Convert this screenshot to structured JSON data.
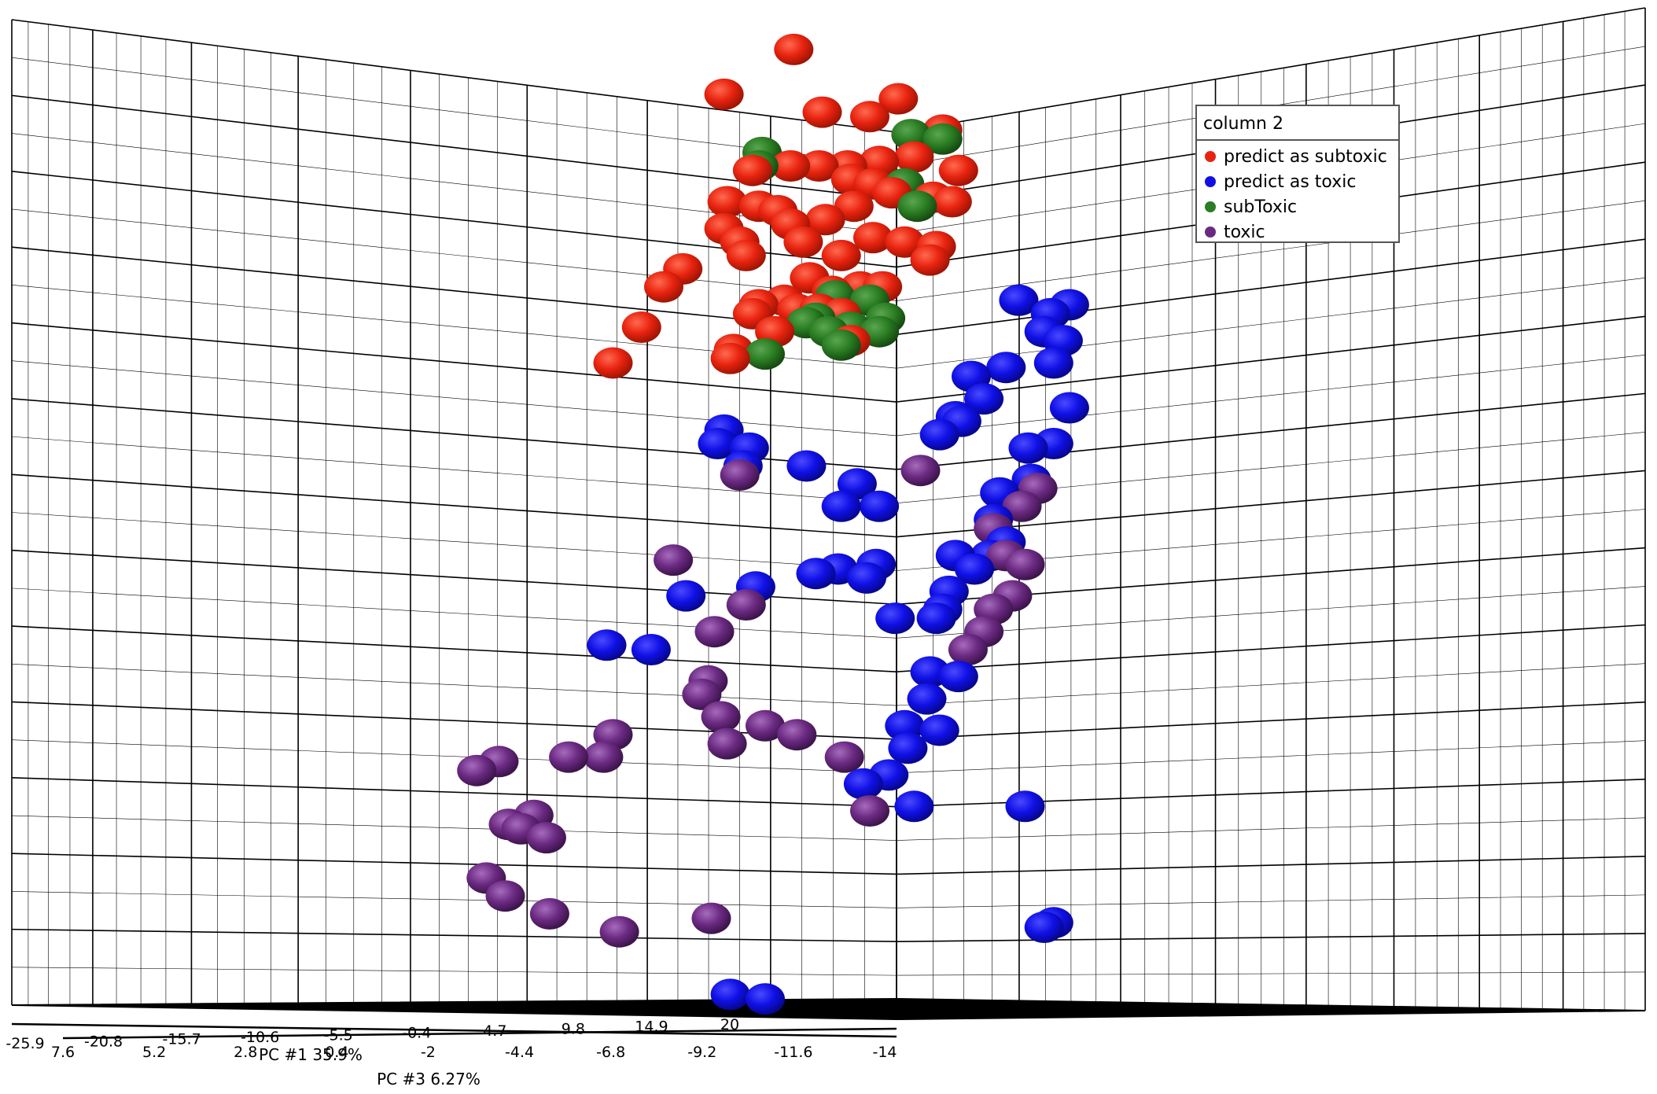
{
  "chart_data": {
    "type": "scatter",
    "variant": "3d-scatter",
    "title": "",
    "axes": {
      "x": {
        "label": "PC #1 35.9%",
        "ticks": [
          "-25.9",
          "-20.8",
          "-15.7",
          "-10.6",
          "-5.5",
          "-0.4",
          "4.7",
          "9.8",
          "14.9",
          "20"
        ]
      },
      "y": {
        "label": "PC #3 6.27%",
        "ticks": [
          "7.6",
          "5.2",
          "2.8",
          "0.4",
          "-2",
          "-4.4",
          "-6.8",
          "-9.2",
          "-11.6",
          "-14"
        ]
      }
    },
    "grid": true,
    "legend": {
      "title": "column 2",
      "placement": "top-right",
      "entries": [
        {
          "name": "predict as subtoxic",
          "color": "#e8230f"
        },
        {
          "name": "predict as toxic",
          "color": "#1010e6"
        },
        {
          "name": "subToxic",
          "color": "#2a7d22"
        },
        {
          "name": "toxic",
          "color": "#6b2a82"
        }
      ]
    },
    "series": [
      {
        "name": "predict as subtoxic",
        "color": "#e8230f",
        "points": [
          [
            -2.1,
            7.9
          ],
          [
            -4.3,
            6.9
          ],
          [
            -1.2,
            6.5
          ],
          [
            0.3,
            6.4
          ],
          [
            1.2,
            6.8
          ],
          [
            2.6,
            6.1
          ],
          [
            3.1,
            5.2
          ],
          [
            2.3,
            4.6
          ],
          [
            2.9,
            4.5
          ],
          [
            1.7,
            5.5
          ],
          [
            0.6,
            5.4
          ],
          [
            -0.4,
            5.3
          ],
          [
            -1.3,
            5.3
          ],
          [
            -2.2,
            5.3
          ],
          [
            -3.4,
            5.2
          ],
          [
            -3.2,
            4.4
          ],
          [
            -4.2,
            4.5
          ],
          [
            -4.3,
            3.9
          ],
          [
            -3.8,
            3.6
          ],
          [
            -3.6,
            3.3
          ],
          [
            -2.6,
            4.3
          ],
          [
            -2.2,
            4.0
          ],
          [
            -1.8,
            3.6
          ],
          [
            -1.1,
            4.1
          ],
          [
            -0.6,
            3.3
          ],
          [
            -0.2,
            4.4
          ],
          [
            0.4,
            3.7
          ],
          [
            -0.3,
            5.0
          ],
          [
            0.4,
            4.9
          ],
          [
            1.0,
            4.7
          ],
          [
            1.4,
            3.6
          ],
          [
            2.2,
            3.2
          ],
          [
            2.4,
            3.5
          ],
          [
            -1.6,
            2.8
          ],
          [
            -0.9,
            2.5
          ],
          [
            -2.0,
            2.1
          ],
          [
            -2.4,
            2.3
          ],
          [
            -3.2,
            2.2
          ],
          [
            -3.4,
            2.0
          ],
          [
            -2.7,
            1.6
          ],
          [
            -1.3,
            2.1
          ],
          [
            -0.6,
            2.0
          ],
          [
            -0.3,
            1.4
          ],
          [
            0.0,
            2.6
          ],
          [
            0.7,
            2.6
          ],
          [
            -4.0,
            1.2
          ],
          [
            -4.1,
            1.0
          ],
          [
            -5.6,
            3.0
          ],
          [
            -6.2,
            2.6
          ],
          [
            -6.9,
            1.7
          ],
          [
            -7.8,
            0.9
          ]
        ]
      },
      {
        "name": "subToxic",
        "color": "#2a7d22",
        "points": [
          [
            -3.1,
            5.6
          ],
          [
            -3.2,
            5.3
          ],
          [
            1.6,
            6.0
          ],
          [
            2.6,
            5.9
          ],
          [
            1.4,
            4.9
          ],
          [
            1.8,
            4.4
          ],
          [
            0.3,
            2.3
          ],
          [
            -0.8,
            2.4
          ],
          [
            -1.4,
            1.9
          ],
          [
            -1.7,
            1.8
          ],
          [
            -1.0,
            1.6
          ],
          [
            -0.3,
            1.7
          ],
          [
            0.8,
            1.9
          ],
          [
            0.6,
            1.6
          ],
          [
            -0.6,
            1.3
          ],
          [
            -3.0,
            1.1
          ]
        ]
      },
      {
        "name": "predict as toxic",
        "color": "#1010e6",
        "points": [
          [
            5.0,
            2.3
          ],
          [
            6.0,
            2.0
          ],
          [
            6.6,
            2.2
          ],
          [
            5.8,
            1.6
          ],
          [
            6.4,
            1.4
          ],
          [
            6.1,
            0.9
          ],
          [
            4.6,
            0.8
          ],
          [
            3.5,
            0.6
          ],
          [
            3.9,
            0.1
          ],
          [
            3.0,
            -0.3
          ],
          [
            2.5,
            -0.7
          ],
          [
            3.2,
            -0.4
          ],
          [
            6.1,
            -0.9
          ],
          [
            6.6,
            -0.1
          ],
          [
            5.3,
            -1.0
          ],
          [
            5.4,
            -1.7
          ],
          [
            4.4,
            -2.0
          ],
          [
            4.2,
            -2.6
          ],
          [
            4.6,
            -3.1
          ],
          [
            4.1,
            -3.4
          ],
          [
            3.6,
            -3.7
          ],
          [
            3.0,
            -3.4
          ],
          [
            2.8,
            -4.2
          ],
          [
            2.6,
            -4.6
          ],
          [
            2.4,
            -4.8
          ],
          [
            2.2,
            -6.0
          ],
          [
            3.1,
            -6.1
          ],
          [
            2.1,
            -6.6
          ],
          [
            1.4,
            -7.2
          ],
          [
            2.5,
            -7.3
          ],
          [
            1.5,
            -7.7
          ],
          [
            0.9,
            -8.3
          ],
          [
            1.7,
            -9.0
          ],
          [
            1.1,
            -4.8
          ],
          [
            0.2,
            -3.9
          ],
          [
            0.5,
            -3.6
          ],
          [
            0.6,
            -2.3
          ],
          [
            -0.1,
            -1.8
          ],
          [
            -0.6,
            -2.3
          ],
          [
            -1.7,
            -1.4
          ],
          [
            -3.5,
            -1.0
          ],
          [
            -4.3,
            -0.6
          ],
          [
            -4.5,
            -0.9
          ],
          [
            -3.7,
            -1.4
          ],
          [
            -1.4,
            -3.8
          ],
          [
            -3.3,
            -4.1
          ],
          [
            -5.5,
            -4.3
          ],
          [
            -8.0,
            -5.4
          ],
          [
            -6.6,
            -5.5
          ],
          [
            -0.7,
            -3.7
          ],
          [
            0.1,
            -8.5
          ],
          [
            5.2,
            -9.0
          ],
          [
            6.1,
            -11.6
          ],
          [
            5.8,
            -11.7
          ],
          [
            -4.1,
            -13.2
          ],
          [
            -3.0,
            -13.3
          ]
        ]
      },
      {
        "name": "toxic",
        "color": "#6b2a82",
        "points": [
          [
            5.6,
            -1.9
          ],
          [
            5.1,
            -2.3
          ],
          [
            4.2,
            -2.8
          ],
          [
            4.6,
            -3.4
          ],
          [
            5.2,
            -3.6
          ],
          [
            4.8,
            -4.3
          ],
          [
            4.2,
            -4.6
          ],
          [
            3.9,
            -5.1
          ],
          [
            3.4,
            -5.5
          ],
          [
            -3.8,
            -1.6
          ],
          [
            -5.9,
            -3.5
          ],
          [
            -3.6,
            -4.5
          ],
          [
            -4.6,
            -5.1
          ],
          [
            -4.8,
            -6.2
          ],
          [
            -4.4,
            -7.0
          ],
          [
            -4.2,
            -7.6
          ],
          [
            -3.0,
            -7.2
          ],
          [
            -2.0,
            -7.4
          ],
          [
            -5.0,
            -6.5
          ],
          [
            -7.8,
            -7.4
          ],
          [
            -8.1,
            -7.9
          ],
          [
            -9.2,
            -7.9
          ],
          [
            -10.7,
            -9.5
          ],
          [
            -11.1,
            -9.4
          ],
          [
            -11.4,
            -8.0
          ],
          [
            -12.1,
            -8.2
          ],
          [
            -10.3,
            -9.2
          ],
          [
            -9.9,
            -9.7
          ],
          [
            -11.8,
            -10.6
          ],
          [
            -11.2,
            -11.0
          ],
          [
            -9.8,
            -11.4
          ],
          [
            -7.6,
            -11.8
          ],
          [
            1.9,
            -1.5
          ],
          [
            0.3,
            -9.1
          ],
          [
            -4.7,
            -11.5
          ],
          [
            -0.5,
            -7.9
          ]
        ]
      }
    ]
  }
}
